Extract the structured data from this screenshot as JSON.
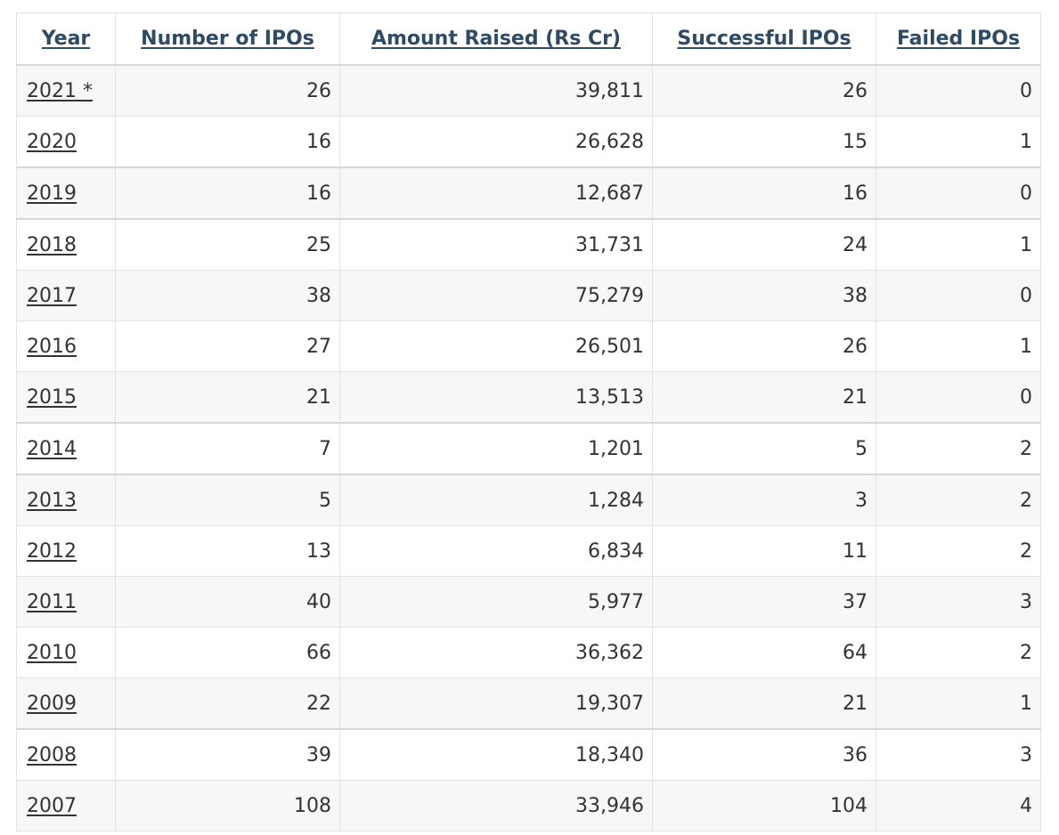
{
  "table": {
    "headers": [
      "Year",
      "Number of IPOs",
      "Amount Raised (Rs Cr)",
      "Successful IPOs",
      "Failed IPOs"
    ],
    "rows": [
      [
        "2021 *",
        "26",
        "39,811",
        "26",
        "0"
      ],
      [
        "2020",
        "16",
        "26,628",
        "15",
        "1"
      ],
      [
        "2019",
        "16",
        "12,687",
        "16",
        "0"
      ],
      [
        "2018",
        "25",
        "31,731",
        "24",
        "1"
      ],
      [
        "2017",
        "38",
        "75,279",
        "38",
        "0"
      ],
      [
        "2016",
        "27",
        "26,501",
        "26",
        "1"
      ],
      [
        "2015",
        "21",
        "13,513",
        "21",
        "0"
      ],
      [
        "2014",
        "7",
        "1,201",
        "5",
        "2"
      ],
      [
        "2013",
        "5",
        "1,284",
        "3",
        "2"
      ],
      [
        "2012",
        "13",
        "6,834",
        "11",
        "2"
      ],
      [
        "2011",
        "40",
        "5,977",
        "37",
        "3"
      ],
      [
        "2010",
        "66",
        "36,362",
        "64",
        "2"
      ],
      [
        "2009",
        "22",
        "19,307",
        "21",
        "1"
      ],
      [
        "2008",
        "39",
        "18,340",
        "36",
        "3"
      ],
      [
        "2007",
        "108",
        "33,946",
        "104",
        "4"
      ]
    ]
  }
}
